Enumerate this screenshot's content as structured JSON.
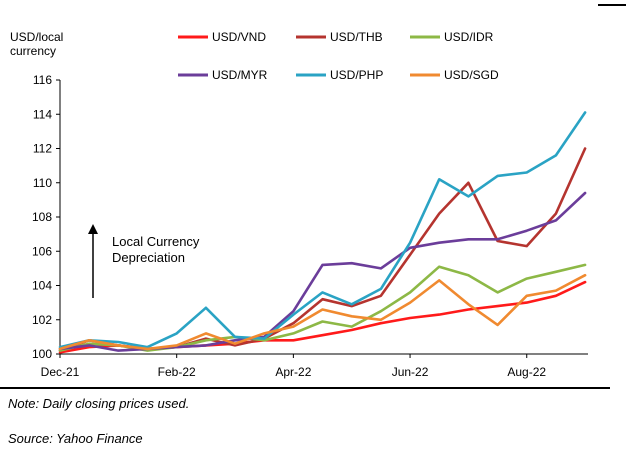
{
  "chart_data": {
    "type": "line",
    "ylabel_lines": [
      "USD/local",
      "currency"
    ],
    "ylim": [
      100,
      116
    ],
    "yticks": [
      100,
      102,
      104,
      106,
      108,
      110,
      112,
      114,
      116
    ],
    "xticks": [
      {
        "label": "Dec-21",
        "t": 0
      },
      {
        "label": "Feb-22",
        "t": 2
      },
      {
        "label": "Apr-22",
        "t": 4
      },
      {
        "label": "Jun-22",
        "t": 6
      },
      {
        "label": "Aug-22",
        "t": 8
      }
    ],
    "xlim": [
      0,
      9.05
    ],
    "annotation": [
      "Local Currency",
      "Depreciation"
    ],
    "series": [
      {
        "name": "USD/VND",
        "color": "#ff1a1a",
        "x": [
          0,
          0.5,
          1,
          1.5,
          2,
          2.5,
          3,
          3.5,
          4,
          4.5,
          5,
          5.5,
          6,
          6.5,
          7,
          7.5,
          8,
          8.5,
          9
        ],
        "values": [
          100.1,
          100.4,
          100.5,
          100.3,
          100.4,
          100.5,
          100.6,
          100.8,
          100.8,
          101.1,
          101.4,
          101.8,
          102.1,
          102.3,
          102.6,
          102.8,
          103.0,
          103.4,
          104.2
        ]
      },
      {
        "name": "USD/THB",
        "color": "#b5342f",
        "x": [
          0,
          0.5,
          1,
          1.5,
          2,
          2.5,
          3,
          3.5,
          4,
          4.5,
          5,
          5.5,
          6,
          6.5,
          7,
          7.5,
          8,
          8.5,
          9
        ],
        "values": [
          100.2,
          100.8,
          100.5,
          100.3,
          100.4,
          100.9,
          100.5,
          100.9,
          101.8,
          103.2,
          102.8,
          103.4,
          105.8,
          108.2,
          110.0,
          106.6,
          106.3,
          108.2,
          112.0
        ]
      },
      {
        "name": "USD/IDR",
        "color": "#8db846",
        "x": [
          0,
          0.5,
          1,
          1.5,
          2,
          2.5,
          3,
          3.5,
          4,
          4.5,
          5,
          5.5,
          6,
          6.5,
          7,
          7.5,
          8,
          8.5,
          9
        ],
        "values": [
          100.2,
          100.6,
          100.5,
          100.2,
          100.4,
          100.8,
          101.0,
          100.8,
          101.2,
          101.9,
          101.6,
          102.5,
          103.6,
          105.1,
          104.6,
          103.6,
          104.4,
          104.8,
          105.2
        ]
      },
      {
        "name": "USD/MYR",
        "color": "#6b3d9a",
        "x": [
          0,
          0.5,
          1,
          1.5,
          2,
          2.5,
          3,
          3.5,
          4,
          4.5,
          5,
          5.5,
          6,
          6.5,
          7,
          7.5,
          8,
          8.5,
          9
        ],
        "values": [
          100.3,
          100.5,
          100.2,
          100.3,
          100.4,
          100.5,
          100.8,
          101.0,
          102.5,
          105.2,
          105.3,
          105.0,
          106.2,
          106.5,
          106.7,
          106.7,
          107.2,
          107.8,
          109.4
        ]
      },
      {
        "name": "USD/PHP",
        "color": "#2aa3c4",
        "x": [
          0,
          0.5,
          1,
          1.5,
          2,
          2.5,
          3,
          3.5,
          4,
          4.5,
          5,
          5.5,
          6,
          6.5,
          7,
          7.5,
          8,
          8.5,
          9
        ],
        "values": [
          100.4,
          100.8,
          100.7,
          100.4,
          101.2,
          102.7,
          101.0,
          100.9,
          102.3,
          103.6,
          102.9,
          103.8,
          106.5,
          110.2,
          109.2,
          110.4,
          110.6,
          111.6,
          114.1
        ]
      },
      {
        "name": "USD/SGD",
        "color": "#f08a30",
        "x": [
          0,
          0.5,
          1,
          1.5,
          2,
          2.5,
          3,
          3.5,
          4,
          4.5,
          5,
          5.5,
          6,
          6.5,
          7,
          7.5,
          8,
          8.5,
          9
        ],
        "values": [
          100.3,
          100.8,
          100.5,
          100.3,
          100.5,
          101.2,
          100.6,
          101.2,
          101.6,
          102.6,
          102.2,
          102.0,
          103.0,
          104.3,
          102.9,
          101.7,
          103.4,
          103.7,
          104.6
        ]
      }
    ]
  },
  "notes": {
    "note": "Note: Daily closing prices used.",
    "source": "Source: Yahoo Finance"
  }
}
